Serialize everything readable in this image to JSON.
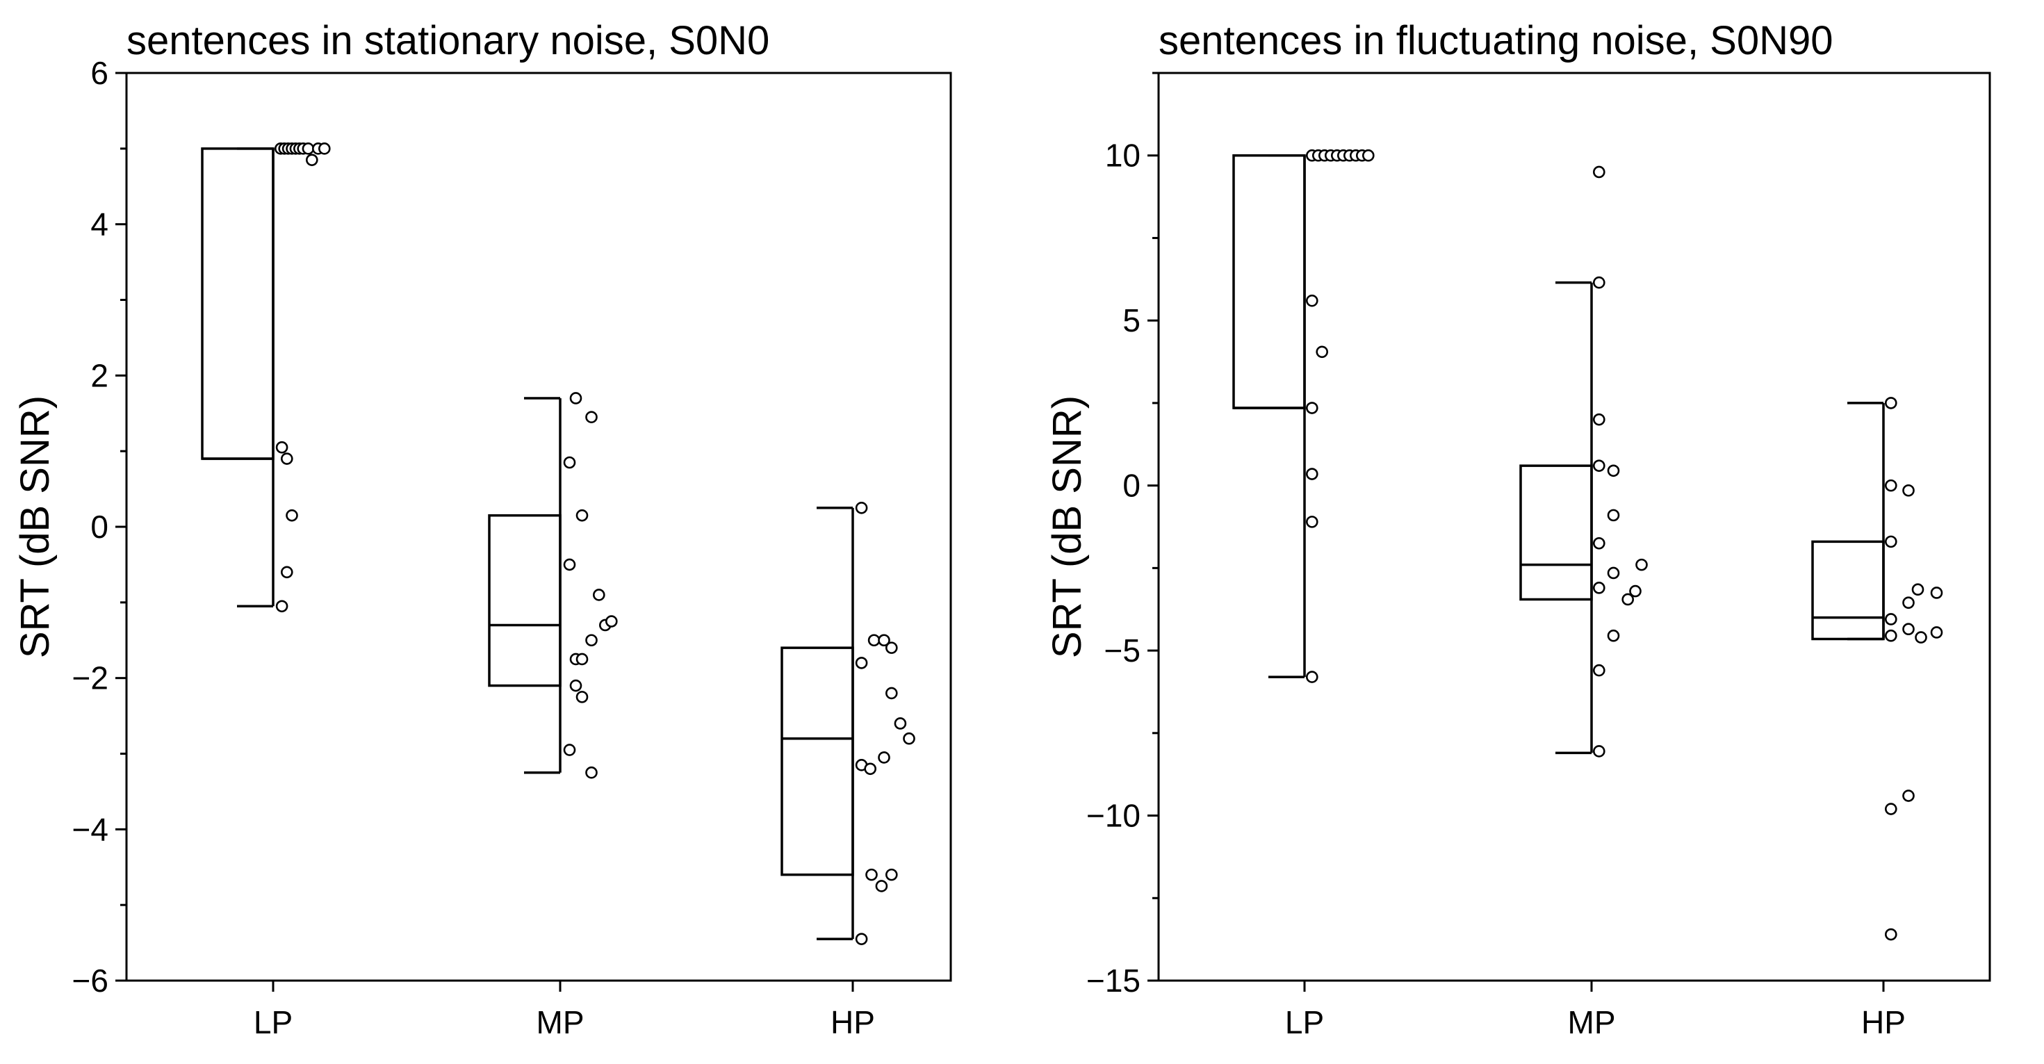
{
  "chart_data": [
    {
      "type": "box",
      "title": "sentences in stationary noise, S0N0",
      "ylabel": "SRT (dB SNR)",
      "xlabel": "",
      "ylim": [
        -6,
        6
      ],
      "yticks": [
        -6,
        -4,
        -2,
        0,
        2,
        4,
        6
      ],
      "ytick_labels": [
        "−6",
        "−4",
        "−2",
        "0",
        "2",
        "4",
        "6"
      ],
      "minor_step": 1,
      "categories": [
        "LP",
        "MP",
        "HP"
      ],
      "boxes": [
        {
          "category": "LP",
          "whisker_low": -1.05,
          "q1": 0.9,
          "median": 0.9,
          "q3": 5.0,
          "whisker_high": 5.0,
          "points": [
            [
              0.12,
              5.0
            ],
            [
              0.18,
              5.0
            ],
            [
              0.24,
              5.0
            ],
            [
              0.3,
              5.0
            ],
            [
              0.36,
              5.0
            ],
            [
              0.42,
              5.0
            ],
            [
              0.48,
              5.0
            ],
            [
              0.56,
              5.0
            ],
            [
              0.72,
              5.0
            ],
            [
              0.82,
              5.0
            ],
            [
              0.62,
              4.85
            ],
            [
              0.14,
              1.05
            ],
            [
              0.22,
              0.9
            ],
            [
              0.3,
              0.15
            ],
            [
              0.22,
              -0.6
            ],
            [
              0.14,
              -1.05
            ]
          ]
        },
        {
          "category": "MP",
          "whisker_low": -3.25,
          "q1": -2.1,
          "median": -1.3,
          "q3": 0.15,
          "whisker_high": 1.7,
          "points": [
            [
              0.25,
              1.7
            ],
            [
              0.5,
              1.45
            ],
            [
              0.15,
              0.85
            ],
            [
              0.35,
              0.15
            ],
            [
              0.15,
              -0.5
            ],
            [
              0.62,
              -0.9
            ],
            [
              0.72,
              -1.3
            ],
            [
              0.82,
              -1.25
            ],
            [
              0.5,
              -1.5
            ],
            [
              0.25,
              -1.75
            ],
            [
              0.35,
              -1.75
            ],
            [
              0.25,
              -2.1
            ],
            [
              0.35,
              -2.25
            ],
            [
              0.15,
              -2.95
            ],
            [
              0.5,
              -3.25
            ]
          ]
        },
        {
          "category": "HP",
          "whisker_low": -5.45,
          "q1": -4.6,
          "median": -2.8,
          "q3": -1.6,
          "whisker_high": 0.25,
          "points": [
            [
              0.14,
              0.25
            ],
            [
              0.34,
              -1.5
            ],
            [
              0.5,
              -1.5
            ],
            [
              0.62,
              -1.6
            ],
            [
              0.14,
              -1.8
            ],
            [
              0.62,
              -2.2
            ],
            [
              0.76,
              -2.6
            ],
            [
              0.9,
              -2.8
            ],
            [
              0.5,
              -3.05
            ],
            [
              0.14,
              -3.15
            ],
            [
              0.28,
              -3.2
            ],
            [
              0.3,
              -4.6
            ],
            [
              0.62,
              -4.6
            ],
            [
              0.46,
              -4.75
            ],
            [
              0.14,
              -5.45
            ]
          ]
        }
      ]
    },
    {
      "type": "box",
      "title": "sentences in fluctuating noise, S0N90",
      "ylabel": "SRT (dB SNR)",
      "xlabel": "",
      "ylim": [
        -15,
        12.5
      ],
      "yticks": [
        -15,
        -10,
        -5,
        0,
        5,
        10
      ],
      "ytick_labels": [
        "−15",
        "−10",
        "−5",
        "0",
        "5",
        "10"
      ],
      "minor_step": 2.5,
      "categories": [
        "LP",
        "MP",
        "HP"
      ],
      "boxes": [
        {
          "category": "LP",
          "whisker_low": -5.8,
          "q1": 2.35,
          "median": 2.35,
          "q3": 10.0,
          "whisker_high": 10.0,
          "points": [
            [
              0.12,
              10.0
            ],
            [
              0.22,
              10.0
            ],
            [
              0.32,
              10.0
            ],
            [
              0.42,
              10.0
            ],
            [
              0.52,
              10.0
            ],
            [
              0.62,
              10.0
            ],
            [
              0.72,
              10.0
            ],
            [
              0.82,
              10.0
            ],
            [
              0.92,
              10.0
            ],
            [
              1.02,
              10.0
            ],
            [
              0.12,
              5.6
            ],
            [
              0.28,
              4.05
            ],
            [
              0.12,
              2.35
            ],
            [
              0.12,
              0.35
            ],
            [
              0.12,
              -1.1
            ],
            [
              0.12,
              -5.8
            ]
          ]
        },
        {
          "category": "MP",
          "whisker_low": -8.1,
          "q1": -3.45,
          "median": -2.4,
          "q3": 0.6,
          "whisker_high": 6.15,
          "points": [
            [
              0.12,
              9.5
            ],
            [
              0.12,
              6.15
            ],
            [
              0.12,
              2.0
            ],
            [
              0.12,
              0.6
            ],
            [
              0.35,
              0.45
            ],
            [
              0.35,
              -0.9
            ],
            [
              0.12,
              -1.75
            ],
            [
              0.35,
              -2.65
            ],
            [
              0.8,
              -2.4
            ],
            [
              0.12,
              -3.1
            ],
            [
              0.58,
              -3.45
            ],
            [
              0.7,
              -3.2
            ],
            [
              0.35,
              -4.55
            ],
            [
              0.12,
              -5.6
            ],
            [
              0.12,
              -8.05
            ]
          ]
        },
        {
          "category": "HP",
          "whisker_low": -4.65,
          "q1": -4.65,
          "median": -4.0,
          "q3": -1.7,
          "whisker_high": 2.5,
          "points": [
            [
              0.12,
              2.5
            ],
            [
              0.12,
              0.0
            ],
            [
              0.4,
              -0.15
            ],
            [
              0.12,
              -1.7
            ],
            [
              0.55,
              -3.15
            ],
            [
              0.4,
              -3.55
            ],
            [
              0.85,
              -3.25
            ],
            [
              0.12,
              -4.05
            ],
            [
              0.4,
              -4.35
            ],
            [
              0.85,
              -4.45
            ],
            [
              0.12,
              -4.55
            ],
            [
              0.6,
              -4.6
            ],
            [
              0.4,
              -9.4
            ],
            [
              0.12,
              -9.8
            ],
            [
              0.12,
              -13.6
            ]
          ]
        }
      ]
    }
  ]
}
